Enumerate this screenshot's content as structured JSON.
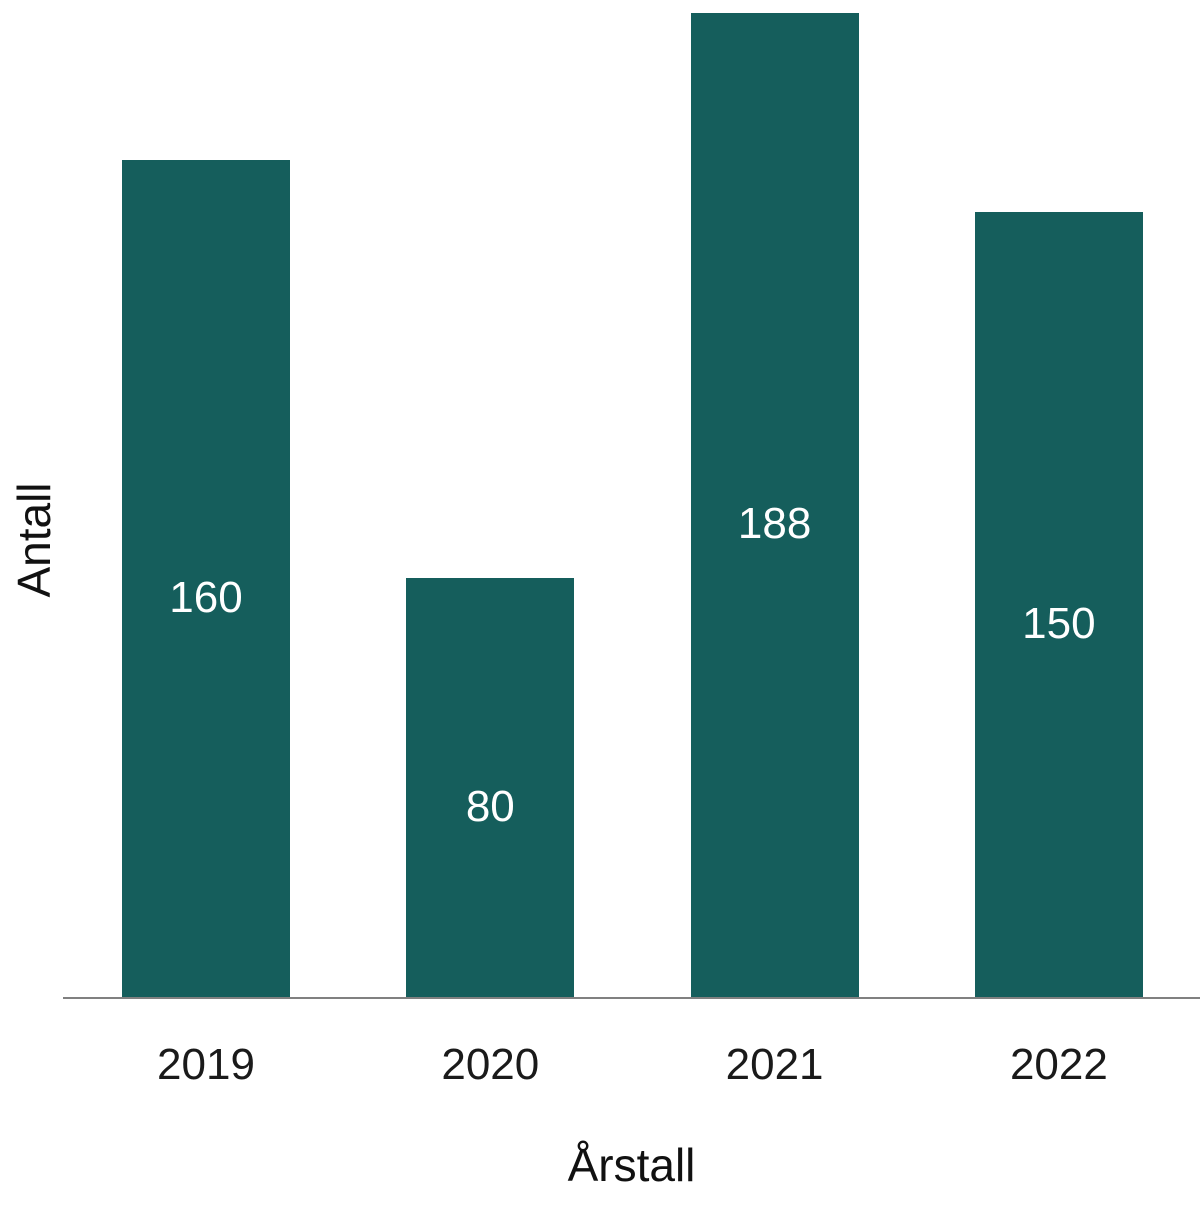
{
  "chart_data": {
    "type": "bar",
    "title": "",
    "categories": [
      "2019",
      "2020",
      "2021",
      "2022"
    ],
    "values": [
      160,
      80,
      188,
      150
    ],
    "xlabel": "Årstall",
    "ylabel": "Antall",
    "ylim": [
      0,
      190.5
    ],
    "grid": false,
    "legend": false,
    "bar_color": "#155e5c",
    "value_label_color": "#ffffff",
    "axis_line_color": "#808080",
    "text_color": "#1a1a1a"
  }
}
